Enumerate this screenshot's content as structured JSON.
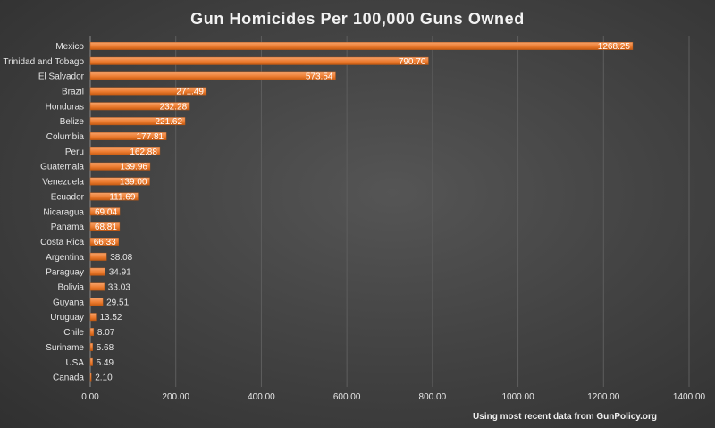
{
  "chart_data": {
    "type": "bar",
    "orientation": "horizontal",
    "title": "Gun Homicides Per 100,000 Guns Owned",
    "source_note": "Using most recent data from GunPolicy.org",
    "categories": [
      "Mexico",
      "Trinidad and Tobago",
      "El Salvador",
      "Brazil",
      "Honduras",
      "Belize",
      "Columbia",
      "Peru",
      "Guatemala",
      "Venezuela",
      "Ecuador",
      "Nicaragua",
      "Panama",
      "Costa Rica",
      "Argentina",
      "Paraguay",
      "Bolivia",
      "Guyana",
      "Uruguay",
      "Chile",
      "Suriname",
      "USA",
      "Canada"
    ],
    "values": [
      1268.25,
      790.7,
      573.54,
      271.49,
      232.28,
      221.62,
      177.81,
      162.88,
      139.96,
      139.0,
      111.69,
      69.04,
      68.81,
      66.33,
      38.08,
      34.91,
      33.03,
      29.51,
      13.52,
      8.07,
      5.68,
      5.49,
      2.1
    ],
    "value_labels": [
      "1268.25",
      "790.70",
      "573.54",
      "271.49",
      "232.28",
      "221.62",
      "177.81",
      "162.88",
      "139.96",
      "139.00",
      "111.69",
      "69.04",
      "68.81",
      "66.33",
      "38.08",
      "34.91",
      "33.03",
      "29.51",
      "13.52",
      "8.07",
      "5.68",
      "5.49",
      "2.10"
    ],
    "xlim": [
      0,
      1400
    ],
    "x_ticks": [
      0,
      200,
      400,
      600,
      800,
      1000,
      1200,
      1400
    ],
    "x_tick_labels": [
      "0.00",
      "200.00",
      "400.00",
      "600.00",
      "800.00",
      "1000.00",
      "1200.00",
      "1400.00"
    ],
    "grid": "vertical",
    "legend": "none",
    "bar_color": "#ed7d31"
  }
}
